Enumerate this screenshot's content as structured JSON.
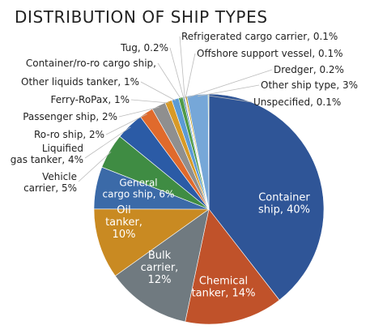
{
  "chart_data": {
    "type": "pie",
    "title": "DISTRIBUTION OF SHIP TYPES",
    "slices": [
      {
        "label": "Container ship, 40%",
        "value": 40,
        "color": "#2f5597"
      },
      {
        "label": "Chemical tanker, 14%",
        "value": 14,
        "color": "#c0522a"
      },
      {
        "label": "Bulk carrier, 12%",
        "value": 12,
        "color": "#707a80"
      },
      {
        "label": "Oil tanker, 10%",
        "value": 10,
        "color": "#c98a22"
      },
      {
        "label": "General cargo ship, 6%",
        "value": 6,
        "color": "#3b6aa8"
      },
      {
        "label": "Vehicle carrier, 5%",
        "value": 5,
        "color": "#3f8c43"
      },
      {
        "label": "Liquified gas tanker, 4%",
        "value": 4,
        "color": "#2b5ba6"
      },
      {
        "label": "Ro-ro ship, 2%",
        "value": 2,
        "color": "#e06a2c"
      },
      {
        "label": "Passenger ship, 2%",
        "value": 2,
        "color": "#8f8f8f"
      },
      {
        "label": "Ferry-RoPax, 1%",
        "value": 1,
        "color": "#d89a26"
      },
      {
        "label": "Other liquids tanker, 1%",
        "value": 1,
        "color": "#5b9bd5"
      },
      {
        "label": "Container/ro-ro cargo ship,",
        "value": 0.6,
        "color": "#4f9a46"
      },
      {
        "label": "Tug, 0.2%",
        "value": 0.2,
        "color": "#2e75b6"
      },
      {
        "label": "Refrigerated cargo carrier, 0.1%",
        "value": 0.1,
        "color": "#c55a11"
      },
      {
        "label": "Offshore support vessel, 0.1%",
        "value": 0.1,
        "color": "#a5a5a5"
      },
      {
        "label": "Dredger, 0.2%",
        "value": 0.2,
        "color": "#bf9000"
      },
      {
        "label": "Other ship type, 3%",
        "value": 3,
        "color": "#76a7d8"
      },
      {
        "label": "Unspecified, 0.1%",
        "value": 0.1,
        "color": "#70ad47"
      }
    ],
    "legend": "none"
  }
}
